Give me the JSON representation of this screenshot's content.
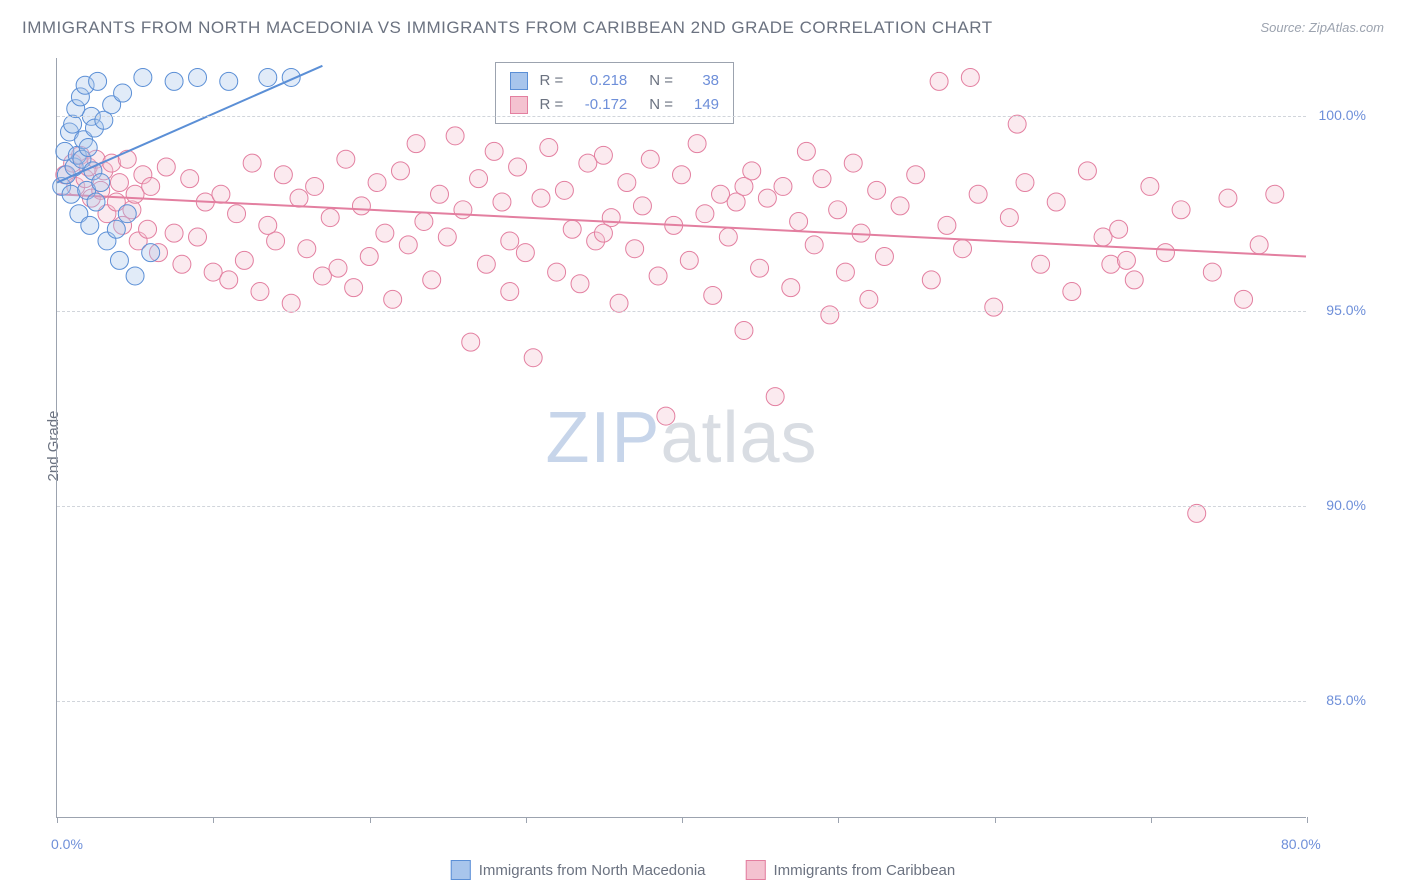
{
  "title": "IMMIGRANTS FROM NORTH MACEDONIA VS IMMIGRANTS FROM CARIBBEAN 2ND GRADE CORRELATION CHART",
  "source": "Source: ZipAtlas.com",
  "ylabel": "2nd Grade",
  "watermark_a": "ZIP",
  "watermark_b": "atlas",
  "chart": {
    "type": "scatter",
    "background_color": "#ffffff",
    "grid_color": "#d1d5db",
    "axis_color": "#9ca3af",
    "text_color": "#6b7280",
    "tick_color": "#6e8fd9",
    "xlim": [
      0,
      80
    ],
    "ylim": [
      82,
      101.5
    ],
    "xticks": [
      0,
      10,
      20,
      30,
      40,
      50,
      60,
      70,
      80
    ],
    "xtick_labels": {
      "0": "0.0%",
      "80": "80.0%"
    },
    "yticks": [
      85,
      90,
      95,
      100
    ],
    "ytick_labels": [
      "85.0%",
      "90.0%",
      "95.0%",
      "100.0%"
    ],
    "marker_radius": 9,
    "marker_opacity": 0.35,
    "line_width": 2,
    "title_fontsize": 17,
    "label_fontsize": 15,
    "tick_fontsize": 14
  },
  "series": [
    {
      "name": "Immigrants from North Macedonia",
      "color_fill": "#a8c5ec",
      "color_stroke": "#5b8fd6",
      "R": "0.218",
      "N": "38",
      "trend": {
        "x1": 0,
        "y1": 98.3,
        "x2": 17,
        "y2": 101.3
      },
      "points": [
        [
          0.3,
          98.2
        ],
        [
          0.5,
          99.1
        ],
        [
          0.6,
          98.5
        ],
        [
          0.8,
          99.6
        ],
        [
          0.9,
          98.0
        ],
        [
          1.0,
          99.8
        ],
        [
          1.1,
          98.7
        ],
        [
          1.2,
          100.2
        ],
        [
          1.3,
          99.0
        ],
        [
          1.4,
          97.5
        ],
        [
          1.5,
          100.5
        ],
        [
          1.6,
          98.9
        ],
        [
          1.7,
          99.4
        ],
        [
          1.8,
          100.8
        ],
        [
          1.9,
          98.1
        ],
        [
          2.0,
          99.2
        ],
        [
          2.1,
          97.2
        ],
        [
          2.2,
          100.0
        ],
        [
          2.3,
          98.6
        ],
        [
          2.4,
          99.7
        ],
        [
          2.5,
          97.8
        ],
        [
          2.6,
          100.9
        ],
        [
          2.8,
          98.3
        ],
        [
          3.0,
          99.9
        ],
        [
          3.2,
          96.8
        ],
        [
          3.5,
          100.3
        ],
        [
          3.8,
          97.1
        ],
        [
          4.0,
          96.3
        ],
        [
          4.2,
          100.6
        ],
        [
          4.5,
          97.5
        ],
        [
          5.0,
          95.9
        ],
        [
          5.5,
          101.0
        ],
        [
          6.0,
          96.5
        ],
        [
          7.5,
          100.9
        ],
        [
          9.0,
          101.0
        ],
        [
          11.0,
          100.9
        ],
        [
          13.5,
          101.0
        ],
        [
          15.0,
          101.0
        ]
      ]
    },
    {
      "name": "Immigrants from Caribbean",
      "color_fill": "#f4c2d0",
      "color_stroke": "#e37fa0",
      "R": "-0.172",
      "N": "149",
      "trend": {
        "x1": 0,
        "y1": 98.0,
        "x2": 80,
        "y2": 96.4
      },
      "points": [
        [
          0.5,
          98.5
        ],
        [
          1.0,
          98.8
        ],
        [
          1.2,
          98.2
        ],
        [
          1.5,
          99.0
        ],
        [
          1.8,
          98.4
        ],
        [
          2.0,
          98.7
        ],
        [
          2.2,
          97.9
        ],
        [
          2.5,
          98.9
        ],
        [
          2.8,
          98.1
        ],
        [
          3.0,
          98.6
        ],
        [
          3.2,
          97.5
        ],
        [
          3.5,
          98.8
        ],
        [
          3.8,
          97.8
        ],
        [
          4.0,
          98.3
        ],
        [
          4.2,
          97.2
        ],
        [
          4.5,
          98.9
        ],
        [
          4.8,
          97.6
        ],
        [
          5.0,
          98.0
        ],
        [
          5.2,
          96.8
        ],
        [
          5.5,
          98.5
        ],
        [
          5.8,
          97.1
        ],
        [
          6.0,
          98.2
        ],
        [
          6.5,
          96.5
        ],
        [
          7.0,
          98.7
        ],
        [
          7.5,
          97.0
        ],
        [
          8.0,
          96.2
        ],
        [
          8.5,
          98.4
        ],
        [
          9.0,
          96.9
        ],
        [
          9.5,
          97.8
        ],
        [
          10.0,
          96.0
        ],
        [
          10.5,
          98.0
        ],
        [
          11.0,
          95.8
        ],
        [
          11.5,
          97.5
        ],
        [
          12.0,
          96.3
        ],
        [
          12.5,
          98.8
        ],
        [
          13.0,
          95.5
        ],
        [
          13.5,
          97.2
        ],
        [
          14.0,
          96.8
        ],
        [
          14.5,
          98.5
        ],
        [
          15.0,
          95.2
        ],
        [
          15.5,
          97.9
        ],
        [
          16.0,
          96.6
        ],
        [
          16.5,
          98.2
        ],
        [
          17.0,
          95.9
        ],
        [
          17.5,
          97.4
        ],
        [
          18.0,
          96.1
        ],
        [
          18.5,
          98.9
        ],
        [
          19.0,
          95.6
        ],
        [
          19.5,
          97.7
        ],
        [
          20.0,
          96.4
        ],
        [
          20.5,
          98.3
        ],
        [
          21.0,
          97.0
        ],
        [
          21.5,
          95.3
        ],
        [
          22.0,
          98.6
        ],
        [
          22.5,
          96.7
        ],
        [
          23.0,
          99.3
        ],
        [
          23.5,
          97.3
        ],
        [
          24.0,
          95.8
        ],
        [
          24.5,
          98.0
        ],
        [
          25.0,
          96.9
        ],
        [
          25.5,
          99.5
        ],
        [
          26.0,
          97.6
        ],
        [
          26.5,
          94.2
        ],
        [
          27.0,
          98.4
        ],
        [
          27.5,
          96.2
        ],
        [
          28.0,
          99.1
        ],
        [
          28.5,
          97.8
        ],
        [
          29.0,
          95.5
        ],
        [
          29.5,
          98.7
        ],
        [
          30.0,
          96.5
        ],
        [
          30.5,
          93.8
        ],
        [
          31.0,
          97.9
        ],
        [
          31.5,
          99.2
        ],
        [
          32.0,
          96.0
        ],
        [
          32.5,
          98.1
        ],
        [
          33.0,
          97.1
        ],
        [
          33.5,
          95.7
        ],
        [
          34.0,
          98.8
        ],
        [
          34.5,
          96.8
        ],
        [
          35.0,
          99.0
        ],
        [
          35.5,
          97.4
        ],
        [
          36.0,
          95.2
        ],
        [
          36.5,
          98.3
        ],
        [
          37.0,
          96.6
        ],
        [
          37.5,
          97.7
        ],
        [
          38.0,
          98.9
        ],
        [
          38.5,
          95.9
        ],
        [
          39.0,
          92.3
        ],
        [
          39.5,
          97.2
        ],
        [
          40.0,
          98.5
        ],
        [
          40.5,
          96.3
        ],
        [
          41.0,
          99.3
        ],
        [
          41.5,
          97.5
        ],
        [
          42.0,
          95.4
        ],
        [
          42.5,
          98.0
        ],
        [
          43.0,
          96.9
        ],
        [
          43.5,
          97.8
        ],
        [
          44.0,
          94.5
        ],
        [
          44.5,
          98.6
        ],
        [
          45.0,
          96.1
        ],
        [
          45.5,
          97.9
        ],
        [
          46.0,
          92.8
        ],
        [
          46.5,
          98.2
        ],
        [
          47.0,
          95.6
        ],
        [
          47.5,
          97.3
        ],
        [
          48.0,
          99.1
        ],
        [
          48.5,
          96.7
        ],
        [
          49.0,
          98.4
        ],
        [
          49.5,
          94.9
        ],
        [
          50.0,
          97.6
        ],
        [
          50.5,
          96.0
        ],
        [
          51.0,
          98.8
        ],
        [
          51.5,
          97.0
        ],
        [
          52.0,
          95.3
        ],
        [
          52.5,
          98.1
        ],
        [
          53.0,
          96.4
        ],
        [
          54.0,
          97.7
        ],
        [
          55.0,
          98.5
        ],
        [
          56.0,
          95.8
        ],
        [
          57.0,
          97.2
        ],
        [
          56.5,
          100.9
        ],
        [
          58.0,
          96.6
        ],
        [
          58.5,
          101.0
        ],
        [
          59.0,
          98.0
        ],
        [
          60.0,
          95.1
        ],
        [
          61.0,
          97.4
        ],
        [
          61.5,
          99.8
        ],
        [
          62.0,
          98.3
        ],
        [
          63.0,
          96.2
        ],
        [
          64.0,
          97.8
        ],
        [
          65.0,
          95.5
        ],
        [
          66.0,
          98.6
        ],
        [
          67.0,
          96.9
        ],
        [
          68.0,
          97.1
        ],
        [
          69.0,
          95.8
        ],
        [
          70.0,
          98.2
        ],
        [
          71.0,
          96.5
        ],
        [
          72.0,
          97.6
        ],
        [
          73.0,
          89.8
        ],
        [
          74.0,
          96.0
        ],
        [
          75.0,
          97.9
        ],
        [
          76.0,
          95.3
        ],
        [
          77.0,
          96.7
        ],
        [
          78.0,
          98.0
        ],
        [
          67.5,
          96.2
        ],
        [
          68.5,
          96.3
        ],
        [
          44.0,
          98.2
        ],
        [
          35.0,
          97.0
        ],
        [
          29.0,
          96.8
        ]
      ]
    }
  ],
  "stats_label_R": "R =",
  "stats_label_N": "N ="
}
